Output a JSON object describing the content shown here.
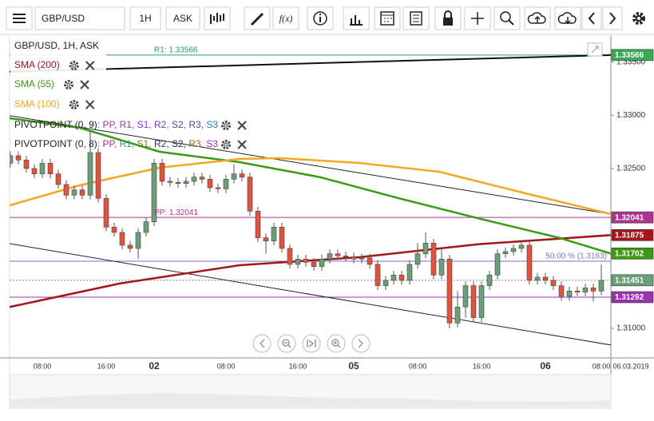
{
  "toolbar": {
    "symbol": "GBP/USD",
    "interval": "1H",
    "price_type": "ASK",
    "function_button": "f(x)"
  },
  "chart_data": {
    "type": "candlestick",
    "title": "GBP/USD, 1H, ASK",
    "categories": [
      null,
      null,
      null,
      null,
      "08:00",
      null,
      null,
      null,
      null,
      null,
      null,
      null,
      "16:00",
      null,
      null,
      null,
      null,
      null,
      "02",
      null,
      null,
      null,
      null,
      null,
      null,
      null,
      null,
      "08:00",
      null,
      null,
      null,
      null,
      null,
      null,
      null,
      null,
      "16:00",
      null,
      null,
      null,
      null,
      null,
      null,
      "05",
      null,
      null,
      null,
      null,
      null,
      null,
      null,
      "08:00",
      null,
      null,
      null,
      null,
      null,
      null,
      null,
      "16:00",
      null,
      null,
      null,
      null,
      null,
      null,
      null,
      "06",
      null,
      null,
      null,
      null,
      null,
      null,
      "08:00"
    ],
    "date_label": "06.03.2019",
    "up_color": "#6a9f78",
    "down_color": "#e0533f",
    "open": [
      1.3255,
      1.3262,
      1.3258,
      1.325,
      1.3245,
      1.3255,
      1.3245,
      1.3235,
      1.3225,
      1.323,
      1.3225,
      1.3265,
      1.3222,
      1.3195,
      1.319,
      1.3178,
      1.3175,
      1.319,
      1.32,
      1.3255,
      1.3238,
      1.3237,
      1.3236,
      1.3238,
      1.3242,
      1.324,
      1.3232,
      1.3231,
      1.324,
      1.3245,
      1.3242,
      1.321,
      1.3185,
      1.3182,
      1.3195,
      1.3175,
      1.316,
      1.3165,
      1.3162,
      1.3158,
      1.3165,
      1.317,
      1.3168,
      1.3167,
      1.3165,
      1.3166,
      1.316,
      1.314,
      1.3145,
      1.315,
      1.3145,
      1.316,
      1.317,
      1.318,
      1.315,
      1.3165,
      1.3105,
      1.312,
      1.314,
      1.311,
      1.314,
      1.315,
      1.317,
      1.3172,
      1.3175,
      1.3178,
      1.3145,
      1.3148,
      1.3145,
      1.314,
      1.313,
      1.3135,
      1.3134,
      1.3138,
      1.3135
    ],
    "high": [
      1.3266,
      1.3266,
      1.3262,
      1.3254,
      1.3259,
      1.3259,
      1.3249,
      1.3239,
      1.3234,
      1.3234,
      1.3285,
      1.3269,
      1.3226,
      1.3199,
      1.3194,
      1.3182,
      1.3194,
      1.3204,
      1.3259,
      1.3259,
      1.3242,
      1.3241,
      1.3242,
      1.3246,
      1.3246,
      1.3244,
      1.3236,
      1.3244,
      1.3254,
      1.3249,
      1.3246,
      1.3214,
      1.3189,
      1.3199,
      1.3199,
      1.3179,
      1.3169,
      1.3169,
      1.3166,
      1.3169,
      1.3174,
      1.3174,
      1.3172,
      1.3171,
      1.317,
      1.317,
      1.3164,
      1.3149,
      1.3154,
      1.3154,
      1.3164,
      1.318,
      1.319,
      1.3184,
      1.3175,
      1.3169,
      1.3135,
      1.3144,
      1.3144,
      1.3144,
      1.3154,
      1.3174,
      1.3176,
      1.3179,
      1.3182,
      1.3182,
      1.3152,
      1.3152,
      1.3149,
      1.3144,
      1.3139,
      1.3139,
      1.3142,
      1.3142,
      1.316
    ],
    "low": [
      1.3251,
      1.3254,
      1.3246,
      1.3241,
      1.3241,
      1.3241,
      1.3231,
      1.3221,
      1.3221,
      1.3221,
      1.3221,
      1.3218,
      1.3191,
      1.3186,
      1.3174,
      1.3171,
      1.3165,
      1.3186,
      1.3196,
      1.3234,
      1.3233,
      1.3232,
      1.3232,
      1.3234,
      1.3236,
      1.3228,
      1.3227,
      1.3227,
      1.3236,
      1.3238,
      1.3206,
      1.3181,
      1.317,
      1.3178,
      1.3171,
      1.3156,
      1.3156,
      1.3158,
      1.3154,
      1.3154,
      1.3161,
      1.3164,
      1.3163,
      1.3161,
      1.3161,
      1.3156,
      1.3136,
      1.3136,
      1.3141,
      1.3141,
      1.3141,
      1.3156,
      1.3166,
      1.3146,
      1.3146,
      1.31,
      1.3101,
      1.311,
      1.3106,
      1.3106,
      1.3136,
      1.3146,
      1.3166,
      1.3168,
      1.3171,
      1.3141,
      1.3141,
      1.3141,
      1.3136,
      1.3126,
      1.3126,
      1.313,
      1.313,
      1.3125,
      1.3131
    ],
    "close": [
      1.3262,
      1.3258,
      1.325,
      1.3245,
      1.3255,
      1.3245,
      1.3235,
      1.3225,
      1.323,
      1.3225,
      1.3265,
      1.3222,
      1.3195,
      1.319,
      1.3178,
      1.3175,
      1.319,
      1.32,
      1.3255,
      1.3238,
      1.3237,
      1.3236,
      1.3238,
      1.3242,
      1.324,
      1.3232,
      1.3231,
      1.324,
      1.3245,
      1.3242,
      1.321,
      1.3185,
      1.3182,
      1.3195,
      1.3175,
      1.316,
      1.3165,
      1.3162,
      1.3158,
      1.3165,
      1.317,
      1.3168,
      1.3167,
      1.3165,
      1.3166,
      1.316,
      1.314,
      1.3145,
      1.315,
      1.3145,
      1.316,
      1.317,
      1.318,
      1.315,
      1.3165,
      1.3105,
      1.312,
      1.314,
      1.311,
      1.314,
      1.315,
      1.317,
      1.3172,
      1.3175,
      1.3178,
      1.3145,
      1.3148,
      1.3145,
      1.314,
      1.313,
      1.3135,
      1.3134,
      1.3138,
      1.3135,
      1.3145
    ],
    "ylim": [
      1.30722,
      1.33745
    ],
    "yticks": [
      {
        "value": 1.335,
        "label": "1.33500"
      },
      {
        "value": 1.33,
        "label": "1.33000"
      },
      {
        "value": 1.325,
        "label": "1.32500"
      },
      {
        "value": 1.31,
        "label": "1.31000"
      }
    ],
    "series": [
      {
        "name": "SMA (200)",
        "color": "#a3161b",
        "x": [
          -0.1,
          13.7,
          28.7,
          43.7,
          58.7,
          75.2
        ],
        "values": [
          1.312,
          1.3142,
          1.31592,
          1.31667,
          1.3179,
          1.31875
        ]
      },
      {
        "name": "SMA (55)",
        "color": "#3c9a12",
        "x": [
          -0.1,
          8.7,
          18.7,
          28.7,
          38.7,
          48.7,
          58.7,
          68.7,
          75.2
        ],
        "values": [
          1.32972,
          1.32882,
          1.32657,
          1.3256,
          1.3242,
          1.3222,
          1.3203,
          1.3185,
          1.31702
        ]
      },
      {
        "name": "SMA (100)",
        "color": "#f5a623",
        "x": [
          -0.1,
          8.7,
          18.7,
          28.7,
          33.7,
          43.7,
          53.7,
          63.7,
          75.2
        ],
        "values": [
          1.32155,
          1.32343,
          1.32508,
          1.3259,
          1.32598,
          1.32552,
          1.3247,
          1.32282,
          1.32072
        ]
      }
    ],
    "trendlines": [
      {
        "color": "#111111",
        "width": 2,
        "x": [
          -0.1,
          75.2
        ],
        "values": [
          1.33409,
          1.33566
        ]
      },
      {
        "color": "#222222",
        "width": 1,
        "x": [
          -0.1,
          75.2
        ],
        "values": [
          1.32997,
          1.32072
        ]
      },
      {
        "color": "#222222",
        "width": 1,
        "x": [
          -0.1,
          75.2
        ],
        "values": [
          1.31795,
          1.30843
        ]
      }
    ],
    "levels": [
      {
        "value": 1.33566,
        "color": "#2a9d6f",
        "label": "R1: 1.33566",
        "label_side": "left",
        "badge_color": "#3aaa55"
      },
      {
        "value": 1.32041,
        "color": "#b0338f",
        "label": "PP: 1.32041",
        "label_side": "left",
        "badge_color": "#b0338f"
      },
      {
        "value": 1.31875,
        "badge_color": "#a3161b"
      },
      {
        "value": 1.31702,
        "badge_color": "#3c9a12"
      },
      {
        "value": 1.3163,
        "color": "#7b6fd0",
        "label": "50.00 % (1.3163)",
        "label_side": "right"
      },
      {
        "value": 1.31451,
        "color": "#888888",
        "style": "dotted",
        "badge_color": "#6a9f78"
      },
      {
        "value": 1.31292,
        "color": "#9b30b0",
        "badge_color": "#9b30b0"
      }
    ],
    "pivot_legend": [
      {
        "name": "PIVOTPOINT (0, 9)",
        "parts": [
          {
            "text": ": PP,",
            "color": "#b0338f"
          },
          {
            "text": " R1,",
            "color": "#b0338f"
          },
          {
            "text": " S1,",
            "color": "#8a2be2"
          },
          {
            "text": " R2,",
            "color": "#6a3fb0"
          },
          {
            "text": " S2,",
            "color": "#6a3fb0"
          },
          {
            "text": " R3,",
            "color": "#4a4ab0"
          },
          {
            "text": " S3",
            "color": "#2a7fa0"
          }
        ]
      },
      {
        "name": "PIVOTPOINT (0, 8)",
        "parts": [
          {
            "text": ": PP,",
            "color": "#b0338f"
          },
          {
            "text": " R1,",
            "color": "#2a9d6f"
          },
          {
            "text": " S1,",
            "color": "#7a7a20"
          },
          {
            "text": " R2,",
            "color": "#333366"
          },
          {
            "text": " S2,",
            "color": "#333333"
          },
          {
            "text": " R3,",
            "color": "#a06a10"
          },
          {
            "text": " S3",
            "color": "#9b30b0"
          }
        ]
      }
    ]
  }
}
